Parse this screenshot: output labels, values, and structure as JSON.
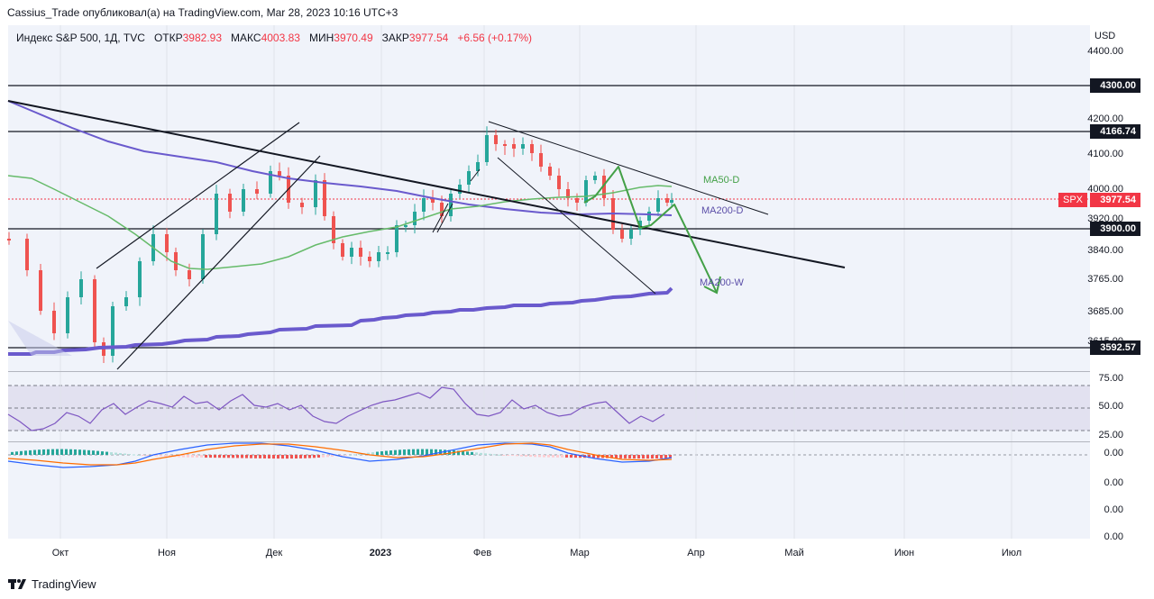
{
  "header": {
    "publish_text": "Cassius_Trade опубликовал(а) на TradingView.com, Mar 28, 2023 10:16 UTC+3"
  },
  "legend": {
    "symbol": "Индекс S&P 500, 1Д, TVC",
    "open_label": "ОТКР",
    "open_value": "3982.93",
    "high_label": "МАКС",
    "high_value": "4003.83",
    "low_label": "МИН",
    "low_value": "3970.49",
    "close_label": "ЗАКР",
    "close_value": "3977.54",
    "change": "+6.56 (+0.17%)"
  },
  "price_axis": {
    "currency": "USD",
    "labels": [
      "4400.00",
      "4200.00",
      "4100.00",
      "4000.00",
      "3920.00",
      "3840.00",
      "3765.00",
      "3685.00",
      "3615.00"
    ],
    "levels": [
      "4300.00",
      "4166.74",
      "3900.00",
      "3592.57"
    ],
    "spx_tag": "SPX",
    "spx_price": "3977.54"
  },
  "rsi_axis": {
    "labels": [
      "75.00",
      "50.00",
      "25.00"
    ]
  },
  "macd_axis": {
    "labels": [
      "0.00",
      "0.00",
      "0.00",
      "0.00"
    ]
  },
  "annotations": {
    "ma50d": "MA50-D",
    "ma200d": "MA200-D",
    "ma200w": "MA200-W"
  },
  "time_axis": {
    "labels": [
      "Окт",
      "Ноя",
      "Дек",
      "2023",
      "Фев",
      "Мар",
      "Апр",
      "Май",
      "Июн",
      "Июл"
    ]
  },
  "footer": {
    "brand": "TradingView"
  },
  "colors": {
    "up": "#26a69a",
    "down": "#ef5350",
    "ma50": "#4caf50",
    "ma200": "#5b4ea8",
    "forecast": "#43a047",
    "level_line": "#131722",
    "spx": "#f23645"
  }
}
